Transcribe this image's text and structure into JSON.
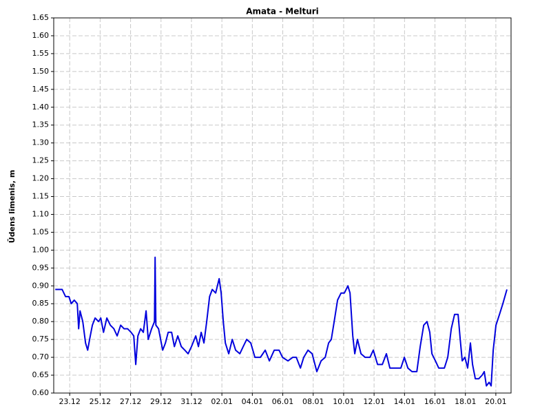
{
  "chart_data": {
    "type": "line",
    "title": "Amata - Melturi",
    "y_label": "Ūdens līmenis, m",
    "color": "#0000dd",
    "grid": true,
    "xlim": [
      -1.05,
      29
    ],
    "ylim": [
      0.6,
      1.65
    ],
    "xticks": [
      {
        "value": 0,
        "label": "23.12"
      },
      {
        "value": 2,
        "label": "25.12"
      },
      {
        "value": 4,
        "label": "27.12"
      },
      {
        "value": 6,
        "label": "29.12"
      },
      {
        "value": 8,
        "label": "31.12"
      },
      {
        "value": 10,
        "label": "02.01"
      },
      {
        "value": 12,
        "label": "04.01"
      },
      {
        "value": 14,
        "label": "06.01"
      },
      {
        "value": 16,
        "label": "08.01"
      },
      {
        "value": 18,
        "label": "10.01"
      },
      {
        "value": 20,
        "label": "12.01"
      },
      {
        "value": 22,
        "label": "14.01"
      },
      {
        "value": 24,
        "label": "16.01"
      },
      {
        "value": 26,
        "label": "18.01"
      },
      {
        "value": 28,
        "label": "20.01"
      }
    ],
    "yticks": [
      {
        "value": 0.6,
        "label": "0.60"
      },
      0.65,
      {
        "value": 0.7,
        "label": "0.70"
      },
      0.75,
      {
        "value": 0.8,
        "label": "0.80"
      },
      0.85,
      {
        "value": 0.9,
        "label": "0.90"
      },
      0.95,
      {
        "value": 1.0,
        "label": "1.00"
      },
      1.05,
      {
        "value": 1.1,
        "label": "1.10"
      },
      1.15,
      {
        "value": 1.2,
        "label": "1.20"
      },
      1.25,
      {
        "value": 1.3,
        "label": "1.30"
      },
      1.35,
      {
        "value": 1.4,
        "label": "1.40"
      },
      1.45,
      {
        "value": 1.5,
        "label": "1.50"
      },
      1.55,
      {
        "value": 1.6,
        "label": "1.60"
      },
      1.65
    ],
    "x": [
      -0.95,
      -0.5,
      -0.27,
      -0.05,
      0.1,
      0.3,
      0.5,
      0.59,
      0.68,
      0.86,
      1.04,
      1.18,
      1.31,
      1.49,
      1.67,
      1.9,
      2.04,
      2.22,
      2.44,
      2.67,
      2.9,
      3.12,
      3.35,
      3.57,
      3.8,
      4.03,
      4.21,
      4.34,
      4.48,
      4.66,
      4.84,
      5.02,
      5.16,
      5.38,
      5.57,
      5.61,
      5.66,
      5.84,
      6.11,
      6.29,
      6.47,
      6.7,
      6.88,
      7.1,
      7.33,
      7.56,
      7.78,
      8.0,
      8.28,
      8.46,
      8.64,
      8.82,
      9.0,
      9.19,
      9.37,
      9.59,
      9.82,
      9.95,
      10.09,
      10.23,
      10.45,
      10.68,
      10.9,
      11.18,
      11.4,
      11.63,
      11.9,
      12.17,
      12.53,
      12.85,
      13.12,
      13.44,
      13.76,
      13.98,
      14.34,
      14.66,
      14.89,
      15.16,
      15.38,
      15.66,
      15.93,
      16.24,
      16.52,
      16.79,
      17.01,
      17.19,
      17.38,
      17.6,
      17.83,
      18.05,
      18.28,
      18.42,
      18.6,
      18.73,
      18.91,
      19.14,
      19.41,
      19.73,
      19.95,
      20.23,
      20.54,
      20.81,
      21.04,
      21.45,
      21.76,
      21.99,
      22.22,
      22.49,
      22.81,
      23.03,
      23.26,
      23.48,
      23.66,
      23.8,
      24.03,
      24.25,
      24.62,
      24.84,
      25.07,
      25.29,
      25.52,
      25.66,
      25.79,
      25.97,
      26.15,
      26.33,
      26.47,
      26.65,
      26.88,
      27.1,
      27.24,
      27.38,
      27.56,
      27.69,
      27.83,
      28.01,
      28.24,
      28.46,
      28.73
    ],
    "values": [
      0.89,
      0.89,
      0.87,
      0.87,
      0.85,
      0.86,
      0.85,
      0.78,
      0.83,
      0.8,
      0.74,
      0.72,
      0.75,
      0.79,
      0.81,
      0.8,
      0.81,
      0.77,
      0.81,
      0.79,
      0.78,
      0.76,
      0.79,
      0.78,
      0.78,
      0.77,
      0.76,
      0.68,
      0.76,
      0.78,
      0.77,
      0.83,
      0.75,
      0.78,
      0.8,
      0.98,
      0.79,
      0.78,
      0.72,
      0.74,
      0.77,
      0.77,
      0.73,
      0.76,
      0.73,
      0.72,
      0.71,
      0.73,
      0.76,
      0.73,
      0.77,
      0.74,
      0.8,
      0.87,
      0.89,
      0.88,
      0.92,
      0.88,
      0.8,
      0.74,
      0.71,
      0.75,
      0.72,
      0.71,
      0.73,
      0.75,
      0.74,
      0.7,
      0.7,
      0.72,
      0.69,
      0.72,
      0.72,
      0.7,
      0.69,
      0.7,
      0.7,
      0.67,
      0.7,
      0.72,
      0.71,
      0.66,
      0.69,
      0.7,
      0.74,
      0.75,
      0.8,
      0.86,
      0.88,
      0.88,
      0.9,
      0.88,
      0.76,
      0.71,
      0.75,
      0.71,
      0.7,
      0.7,
      0.72,
      0.68,
      0.68,
      0.71,
      0.67,
      0.67,
      0.67,
      0.7,
      0.67,
      0.66,
      0.66,
      0.73,
      0.79,
      0.8,
      0.77,
      0.71,
      0.69,
      0.67,
      0.67,
      0.7,
      0.78,
      0.82,
      0.82,
      0.75,
      0.69,
      0.7,
      0.67,
      0.74,
      0.68,
      0.64,
      0.64,
      0.65,
      0.66,
      0.62,
      0.63,
      0.62,
      0.72,
      0.79,
      0.82,
      0.85,
      0.89
    ]
  }
}
